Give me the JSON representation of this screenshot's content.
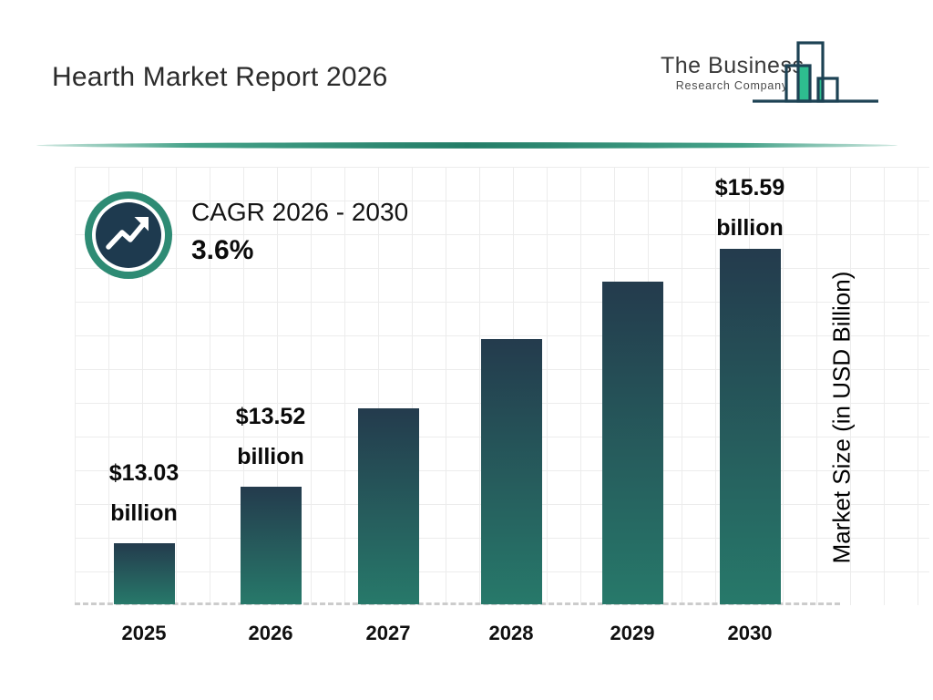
{
  "header": {
    "title": "Hearth Market Report 2026",
    "logo": {
      "line1": "The Business",
      "line2": "Research Company"
    }
  },
  "cagr": {
    "label": "CAGR 2026 - 2030",
    "value": "3.6%"
  },
  "y_axis_label": "Market Size (in USD Billion)",
  "icons": {
    "badge": "trending-up-arrow-icon",
    "logo": "bar-chart-skyline-icon"
  },
  "colors": {
    "accent_teal": "#2e8b74",
    "badge_navy": "#1e3a4f",
    "bar_top": "#243b4d",
    "bar_bottom": "#27796a",
    "logo_green": "#2ebd8f",
    "logo_outline": "#1d4254",
    "grid_line": "#ececec",
    "baseline_dash": "#cccccc",
    "title_text": "#2b2b2b"
  },
  "chart_data": {
    "type": "bar",
    "title": "Hearth Market Report 2026",
    "xlabel": "",
    "ylabel": "Market Size (in USD Billion)",
    "categories": [
      "2025",
      "2026",
      "2027",
      "2028",
      "2029",
      "2030"
    ],
    "values": [
      13.03,
      13.52,
      14.2,
      14.8,
      15.3,
      15.59
    ],
    "bar_labels": [
      "$13.03 billion",
      "$13.52 billion",
      "",
      "",
      "",
      "$15.59 billion"
    ],
    "unit": "USD Billion",
    "ylim": [
      12.5,
      16.3
    ],
    "grid": true,
    "legend": "none",
    "cagr_note": "CAGR 2026 - 2030 3.6%"
  }
}
